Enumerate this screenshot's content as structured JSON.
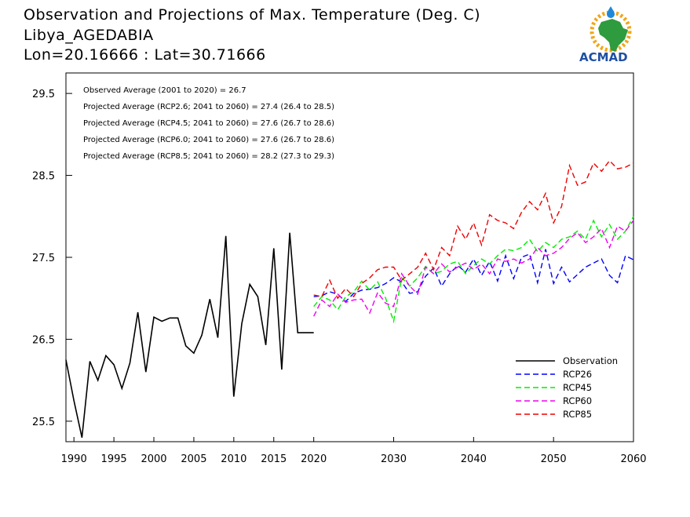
{
  "header": {
    "title": "Observation and Projections of Max. Temperature (Deg. C)",
    "location": "Libya_AGEDABIA",
    "coords": "Lon=20.16666 : Lat=30.71666",
    "logo_text": "ACMAD"
  },
  "colors": {
    "Observation": "#000000",
    "RCP26": "#0000ff",
    "RCP45": "#00ee00",
    "RCP60": "#ee00ee",
    "RCP85": "#ee0000"
  },
  "chart_data": {
    "type": "line",
    "xlim": [
      1989,
      2060
    ],
    "ylim": [
      25.25,
      29.75
    ],
    "x_ticks": [
      "1990",
      "1995",
      "2000",
      "2005",
      "2010",
      "2015",
      "2020",
      "2030",
      "2040",
      "2050",
      "2060"
    ],
    "y_ticks": [
      "25.5",
      "26.5",
      "27.5",
      "28.5",
      "29.5"
    ],
    "annotations": [
      "Observed Average (2001 to 2020) = 26.7",
      "Projected Average (RCP2.6; 2041 to 2060) = 27.4 (26.4 to 28.5)",
      "Projected Average (RCP4.5; 2041 to 2060) = 27.6 (26.7 to 28.6)",
      "Projected Average (RCP6.0; 2041 to 2060) = 27.6 (26.7 to 28.6)",
      "Projected Average (RCP8.5; 2041 to 2060) = 28.2 (27.3 to 29.3)"
    ],
    "legend": [
      "Observation",
      "RCP26",
      "RCP45",
      "RCP60",
      "RCP85"
    ],
    "series": [
      {
        "name": "Observation",
        "x": [
          1989,
          1990,
          1991,
          1992,
          1993,
          1994,
          1995,
          1996,
          1997,
          1998,
          1999,
          2000,
          2001,
          2002,
          2003,
          2004,
          2005,
          2006,
          2007,
          2008,
          2009,
          2010,
          2011,
          2012,
          2013,
          2014,
          2015,
          2016,
          2017,
          2018,
          2019,
          2020
        ],
        "y": [
          26.25,
          25.75,
          25.3,
          26.23,
          26.0,
          26.3,
          26.19,
          25.9,
          26.21,
          26.83,
          26.1,
          26.77,
          26.72,
          26.76,
          26.76,
          26.42,
          26.33,
          26.55,
          26.99,
          26.52,
          27.76,
          25.8,
          26.69,
          27.17,
          27.02,
          26.43,
          27.61,
          26.13,
          27.8,
          26.58,
          26.58,
          26.58
        ]
      },
      {
        "name": "RCP26",
        "x": [
          2020,
          2021,
          2022,
          2023,
          2024,
          2025,
          2026,
          2027,
          2028,
          2029,
          2030,
          2031,
          2032,
          2033,
          2034,
          2035,
          2036,
          2037,
          2038,
          2039,
          2040,
          2041,
          2042,
          2043,
          2044,
          2045,
          2046,
          2047,
          2048,
          2049,
          2050,
          2051,
          2052,
          2053,
          2054,
          2055,
          2056,
          2057,
          2058,
          2059,
          2060
        ],
        "y": [
          27.02,
          27.03,
          27.08,
          27.05,
          26.96,
          27.06,
          27.1,
          27.11,
          27.13,
          27.18,
          27.25,
          27.2,
          27.06,
          27.08,
          27.27,
          27.37,
          27.15,
          27.3,
          27.4,
          27.32,
          27.48,
          27.28,
          27.45,
          27.21,
          27.52,
          27.24,
          27.5,
          27.54,
          27.19,
          27.6,
          27.18,
          27.38,
          27.2,
          27.29,
          27.38,
          27.43,
          27.48,
          27.28,
          27.19,
          27.52,
          27.47
        ]
      },
      {
        "name": "RCP45",
        "x": [
          2020,
          2021,
          2022,
          2023,
          2024,
          2025,
          2026,
          2027,
          2028,
          2029,
          2030,
          2031,
          2032,
          2033,
          2034,
          2035,
          2036,
          2037,
          2038,
          2039,
          2040,
          2041,
          2042,
          2043,
          2044,
          2045,
          2046,
          2047,
          2048,
          2049,
          2050,
          2051,
          2052,
          2053,
          2054,
          2055,
          2056,
          2057,
          2058,
          2059,
          2060
        ],
        "y": [
          26.9,
          27.02,
          26.98,
          26.86,
          27.02,
          27.08,
          27.21,
          27.1,
          27.2,
          27.0,
          26.72,
          27.25,
          27.15,
          27.25,
          27.39,
          27.3,
          27.33,
          27.42,
          27.45,
          27.3,
          27.4,
          27.48,
          27.42,
          27.52,
          27.6,
          27.58,
          27.62,
          27.72,
          27.57,
          27.68,
          27.62,
          27.72,
          27.75,
          27.82,
          27.72,
          27.95,
          27.75,
          27.9,
          27.72,
          27.82,
          28.0
        ]
      },
      {
        "name": "RCP60",
        "x": [
          2020,
          2021,
          2022,
          2023,
          2024,
          2025,
          2026,
          2027,
          2028,
          2029,
          2030,
          2031,
          2032,
          2033,
          2034,
          2035,
          2036,
          2037,
          2038,
          2039,
          2040,
          2041,
          2042,
          2043,
          2044,
          2045,
          2046,
          2047,
          2048,
          2049,
          2050,
          2051,
          2052,
          2053,
          2054,
          2055,
          2056,
          2057,
          2058,
          2059,
          2060
        ],
        "y": [
          26.78,
          26.98,
          26.9,
          27.05,
          26.95,
          26.98,
          26.99,
          26.82,
          27.07,
          26.94,
          26.9,
          27.3,
          27.15,
          27.05,
          27.38,
          27.3,
          27.42,
          27.32,
          27.38,
          27.43,
          27.35,
          27.42,
          27.3,
          27.48,
          27.45,
          27.48,
          27.43,
          27.48,
          27.62,
          27.52,
          27.55,
          27.62,
          27.73,
          27.8,
          27.68,
          27.75,
          27.85,
          27.62,
          27.88,
          27.82,
          27.95
        ]
      },
      {
        "name": "RCP85",
        "x": [
          2020,
          2021,
          2022,
          2023,
          2024,
          2025,
          2026,
          2027,
          2028,
          2029,
          2030,
          2031,
          2032,
          2033,
          2034,
          2035,
          2036,
          2037,
          2038,
          2039,
          2040,
          2041,
          2042,
          2043,
          2044,
          2045,
          2046,
          2047,
          2048,
          2049,
          2050,
          2051,
          2052,
          2053,
          2054,
          2055,
          2056,
          2057,
          2058,
          2059,
          2060
        ],
        "y": [
          27.04,
          27.02,
          27.22,
          27.0,
          27.12,
          27.02,
          27.18,
          27.25,
          27.35,
          27.38,
          27.38,
          27.22,
          27.3,
          27.38,
          27.55,
          27.35,
          27.62,
          27.52,
          27.88,
          27.72,
          27.92,
          27.65,
          28.02,
          27.95,
          27.92,
          27.85,
          28.05,
          28.18,
          28.08,
          28.28,
          27.92,
          28.12,
          28.62,
          28.38,
          28.42,
          28.65,
          28.55,
          28.68,
          28.58,
          28.6,
          28.65
        ]
      }
    ]
  }
}
